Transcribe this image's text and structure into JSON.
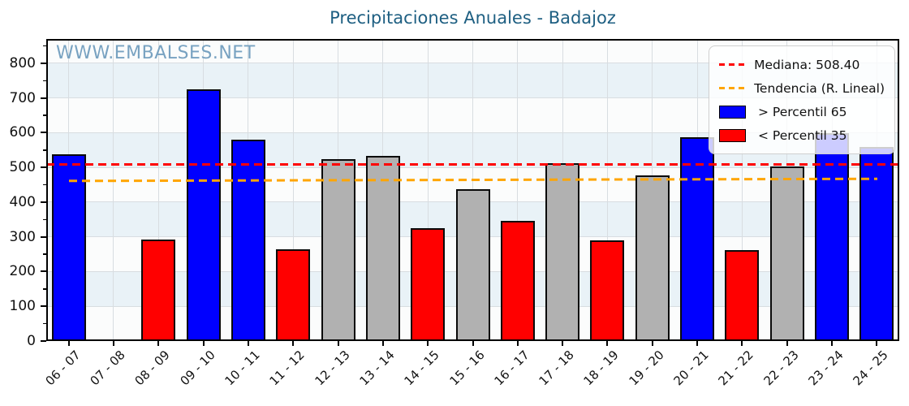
{
  "title": "Precipitaciones Anuales - Badajoz",
  "watermark": "WWW.EMBALSES.NET",
  "colors": {
    "title_text": "#1e5f82",
    "watermark_text": "#78a2c1",
    "above_p65": "#0000ff",
    "below_p35": "#ff0000",
    "mid_range": "#b1b1b1",
    "median_line": "#ff0000",
    "trend_line": "#ffa500",
    "band_tint": "#e9f2f7",
    "band_plain": "#fbfcfc",
    "grid": "#d8dde1"
  },
  "legend": {
    "position": "upper right",
    "items": [
      {
        "swatch": "dashed-line",
        "color": "#ff0000",
        "label": "Mediana: 508.40"
      },
      {
        "swatch": "dashed-line",
        "color": "#ffa500",
        "label": "Tendencia (R. Lineal)"
      },
      {
        "swatch": "patch",
        "color": "#0000ff",
        "label": " > Percentil 65"
      },
      {
        "swatch": "patch",
        "color": "#ff0000",
        "label": " < Percentil 35"
      }
    ]
  },
  "chart_data": {
    "type": "bar",
    "title": "Precipitaciones Anuales - Badajoz",
    "xlabel": "",
    "ylabel": "",
    "categories": [
      "06 - 07",
      "07 - 08",
      "08 - 09",
      "09 - 10",
      "10 - 11",
      "11 - 12",
      "12 - 13",
      "13 - 14",
      "14 - 15",
      "15 - 16",
      "16 - 17",
      "17 - 18",
      "18 - 19",
      "19 - 20",
      "20 - 21",
      "21 - 22",
      "22 - 23",
      "23 - 24",
      "24 - 25"
    ],
    "values": [
      537,
      null,
      293,
      725,
      580,
      265,
      525,
      534,
      325,
      437,
      345,
      512,
      290,
      477,
      586,
      262,
      503,
      598,
      558
    ],
    "classes": [
      "p65",
      null,
      "p35",
      "p65",
      "p65",
      "p35",
      "mid",
      "mid",
      "p35",
      "mid",
      "p35",
      "mid",
      "p35",
      "mid",
      "p65",
      "p35",
      "mid",
      "p65",
      "p65"
    ],
    "median": 508.4,
    "trend_linear": {
      "start_value": 462,
      "end_value": 468
    },
    "ylim": [
      0,
      870
    ],
    "yticks": [
      0,
      100,
      200,
      300,
      400,
      500,
      600,
      700,
      800
    ],
    "grid": true,
    "legend_position": "upper right"
  }
}
